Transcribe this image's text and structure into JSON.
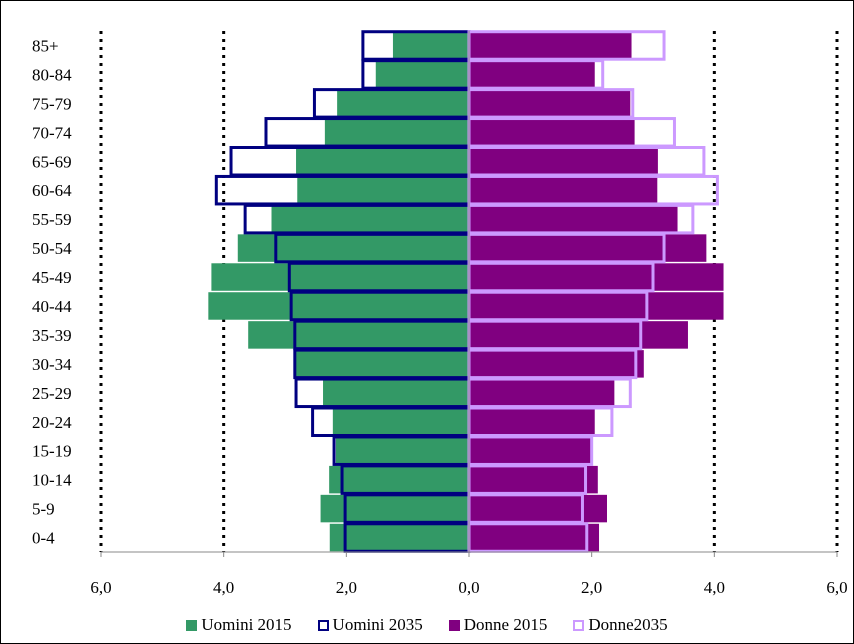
{
  "chart_data": {
    "type": "bar",
    "orientation": "horizontal",
    "title": "",
    "categories": [
      "85+",
      "80-84",
      "75-79",
      "70-74",
      "65-69",
      "60-64",
      "55-59",
      "50-54",
      "45-49",
      "40-44",
      "35-39",
      "30-34",
      "25-29",
      "20-24",
      "15-19",
      "10-14",
      "5-9",
      "0-4"
    ],
    "series": [
      {
        "name": "Uomini 2015",
        "side": "left",
        "style": "filled",
        "color": "#339966",
        "values": [
          1.24,
          1.52,
          2.15,
          2.35,
          2.82,
          2.8,
          3.22,
          3.77,
          4.2,
          4.25,
          3.6,
          2.85,
          2.38,
          2.22,
          2.17,
          2.28,
          2.42,
          2.27
        ]
      },
      {
        "name": "Uomini 2035",
        "side": "left",
        "style": "outline",
        "color": "#000080",
        "values": [
          1.73,
          1.73,
          2.52,
          3.31,
          3.88,
          4.12,
          3.65,
          3.15,
          2.93,
          2.9,
          2.84,
          2.84,
          2.82,
          2.55,
          2.2,
          2.07,
          2.02,
          2.02
        ]
      },
      {
        "name": "Donne 2015",
        "side": "right",
        "style": "filled",
        "color": "#800080",
        "values": [
          2.65,
          2.05,
          2.63,
          2.7,
          3.08,
          3.07,
          3.4,
          3.87,
          4.15,
          4.15,
          3.57,
          2.85,
          2.37,
          2.05,
          2.0,
          2.1,
          2.25,
          2.12
        ]
      },
      {
        "name": "Donne2035",
        "side": "right",
        "style": "outline",
        "color": "#CC99FF",
        "values": [
          3.18,
          2.18,
          2.67,
          3.35,
          3.83,
          4.05,
          3.65,
          3.18,
          3.0,
          2.9,
          2.8,
          2.72,
          2.63,
          2.33,
          2.0,
          1.9,
          1.85,
          1.92
        ]
      }
    ],
    "xlim": [
      -6,
      6
    ],
    "xticks": [
      -6,
      -4,
      -2,
      0,
      2,
      4,
      6
    ],
    "xtick_labels": [
      "6,0",
      "4,0",
      "2,0",
      "0,0",
      "2,0",
      "4,0",
      "6,0"
    ],
    "xlabel": "",
    "ylabel": "",
    "gridlines": "dotted vertical at ±4 and ±6",
    "legend_position": "bottom"
  },
  "legend": {
    "items": [
      "Uomini 2015",
      "Uomini 2035",
      "Donne 2015",
      "Donne2035"
    ]
  }
}
